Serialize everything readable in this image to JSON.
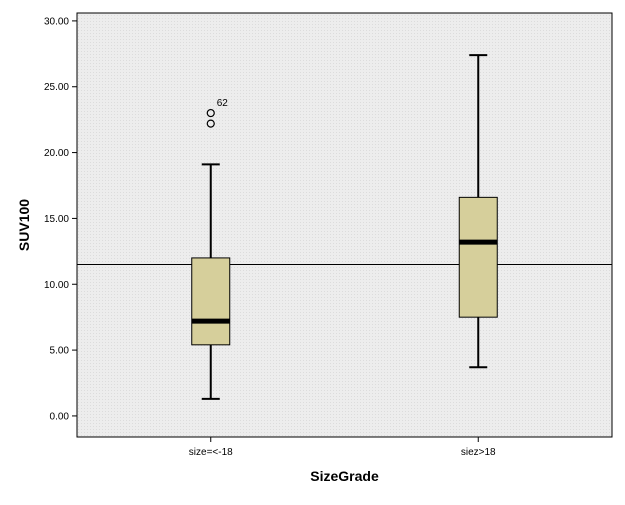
{
  "chart_data": {
    "type": "boxplot",
    "xlabel": "SizeGrade",
    "ylabel": "SUV100",
    "categories": [
      "size=<-18",
      "siez>18"
    ],
    "ylim": [
      -1.6,
      30.6
    ],
    "yticks": [
      "0.00",
      "5.00",
      "10.00",
      "15.00",
      "20.00",
      "25.00",
      "30.00"
    ],
    "ytick_values": [
      0,
      5,
      10,
      15,
      20,
      25,
      30
    ],
    "reference_line": 11.5,
    "grid": false,
    "box_color": "#d6cf9b",
    "plot_background": "#ececec",
    "boxes": [
      {
        "category": "size=<-18",
        "min": 1.3,
        "q1": 5.4,
        "median": 7.2,
        "q3": 12.0,
        "max": 19.1,
        "outliers": [
          {
            "value": 23.0,
            "label": "62"
          },
          {
            "value": 22.2,
            "label": ""
          }
        ]
      },
      {
        "category": "siez>18",
        "min": 3.7,
        "q1": 7.5,
        "median": 13.2,
        "q3": 16.6,
        "max": 27.4,
        "outliers": []
      }
    ]
  }
}
